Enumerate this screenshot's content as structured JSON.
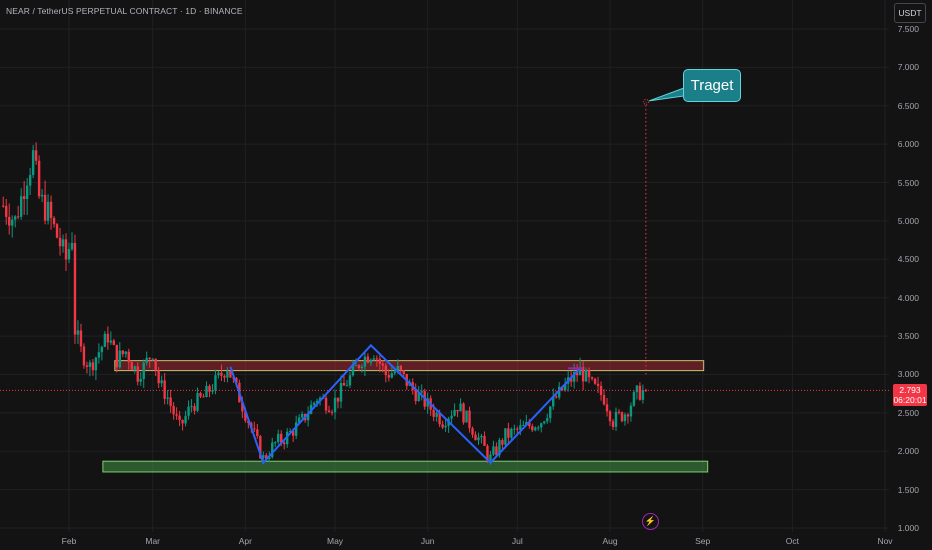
{
  "header": {
    "title": "NEAR / TetherUS PERPETUAL CONTRACT · 1D · BINANCE",
    "currency_button": "USDT"
  },
  "price_badge": {
    "price": "2.793",
    "countdown": "06:20:01"
  },
  "annotation": {
    "target_label": "Traget"
  },
  "colors": {
    "background": "#131313",
    "up_candle": "#089981",
    "down_candle": "#f23645",
    "pattern_line": "#2962ff",
    "resistance_zone": "#f23645",
    "support_zone": "#4caf50",
    "target_label_bg": "#1b7f8a",
    "target_line": "#f23645",
    "alert_icon": "#9c27b0"
  },
  "icons": {
    "alert_icon": "lightning-bolt-icon"
  },
  "chart_data": {
    "type": "candlestick",
    "ylim": [
      1.0,
      7.5
    ],
    "y_ticks": [
      "7.500",
      "7.000",
      "6.500",
      "6.000",
      "5.500",
      "5.000",
      "4.500",
      "4.000",
      "3.500",
      "3.000",
      "2.500",
      "2.000",
      "1.500",
      "1.000"
    ],
    "x_ticks": [
      "Feb",
      "Mar",
      "Apr",
      "May",
      "Jun",
      "Jul",
      "Aug",
      "Sep",
      "Oct",
      "Nov"
    ],
    "grid": true,
    "last_price": 2.793,
    "close_series": [
      {
        "date": "2025-01-10",
        "close": 5.2
      },
      {
        "date": "2025-01-14",
        "close": 5.0
      },
      {
        "date": "2025-01-18",
        "close": 5.6
      },
      {
        "date": "2025-01-20",
        "close": 5.85
      },
      {
        "date": "2025-01-22",
        "close": 5.3
      },
      {
        "date": "2025-01-25",
        "close": 5.1
      },
      {
        "date": "2025-01-28",
        "close": 4.8
      },
      {
        "date": "2025-01-31",
        "close": 4.5
      },
      {
        "date": "2025-02-02",
        "close": 4.8
      },
      {
        "date": "2025-02-03",
        "close": 3.6
      },
      {
        "date": "2025-02-05",
        "close": 3.3
      },
      {
        "date": "2025-02-08",
        "close": 3.1
      },
      {
        "date": "2025-02-11",
        "close": 3.3
      },
      {
        "date": "2025-02-14",
        "close": 3.5
      },
      {
        "date": "2025-02-17",
        "close": 3.2
      },
      {
        "date": "2025-02-20",
        "close": 3.3
      },
      {
        "date": "2025-02-24",
        "close": 3.0
      },
      {
        "date": "2025-02-26",
        "close": 3.1
      },
      {
        "date": "2025-03-01",
        "close": 3.3
      },
      {
        "date": "2025-03-03",
        "close": 2.9
      },
      {
        "date": "2025-03-06",
        "close": 2.7
      },
      {
        "date": "2025-03-10",
        "close": 2.3
      },
      {
        "date": "2025-03-14",
        "close": 2.6
      },
      {
        "date": "2025-03-18",
        "close": 2.7
      },
      {
        "date": "2025-03-22",
        "close": 2.9
      },
      {
        "date": "2025-03-26",
        "close": 3.1
      },
      {
        "date": "2025-03-30",
        "close": 2.7
      },
      {
        "date": "2025-04-03",
        "close": 2.3
      },
      {
        "date": "2025-04-07",
        "close": 1.9
      },
      {
        "date": "2025-04-11",
        "close": 2.1
      },
      {
        "date": "2025-04-15",
        "close": 2.2
      },
      {
        "date": "2025-04-20",
        "close": 2.4
      },
      {
        "date": "2025-04-25",
        "close": 2.7
      },
      {
        "date": "2025-04-30",
        "close": 2.6
      },
      {
        "date": "2025-05-05",
        "close": 2.9
      },
      {
        "date": "2025-05-10",
        "close": 3.2
      },
      {
        "date": "2025-05-14",
        "close": 3.3
      },
      {
        "date": "2025-05-18",
        "close": 3.0
      },
      {
        "date": "2025-05-22",
        "close": 3.05
      },
      {
        "date": "2025-05-27",
        "close": 2.8
      },
      {
        "date": "2025-06-01",
        "close": 2.6
      },
      {
        "date": "2025-06-06",
        "close": 2.4
      },
      {
        "date": "2025-06-11",
        "close": 2.6
      },
      {
        "date": "2025-06-16",
        "close": 2.3
      },
      {
        "date": "2025-06-22",
        "close": 1.9
      },
      {
        "date": "2025-06-27",
        "close": 2.2
      },
      {
        "date": "2025-07-03",
        "close": 2.3
      },
      {
        "date": "2025-07-09",
        "close": 2.4
      },
      {
        "date": "2025-07-14",
        "close": 2.7
      },
      {
        "date": "2025-07-18",
        "close": 2.9
      },
      {
        "date": "2025-07-22",
        "close": 3.05
      },
      {
        "date": "2025-07-26",
        "close": 2.85
      },
      {
        "date": "2025-07-30",
        "close": 2.7
      },
      {
        "date": "2025-08-02",
        "close": 2.4
      },
      {
        "date": "2025-08-06",
        "close": 2.5
      },
      {
        "date": "2025-08-10",
        "close": 2.75
      },
      {
        "date": "2025-08-13",
        "close": 2.793
      }
    ],
    "annotations": {
      "resistance_zone": {
        "y_low": 3.05,
        "y_high": 3.18,
        "x_start": "2025-02-17",
        "x_end": "2025-08-31"
      },
      "support_zone": {
        "y_low": 1.73,
        "y_high": 1.87,
        "x_start": "2025-02-13",
        "x_end": "2025-08-31"
      },
      "pattern_line": [
        {
          "date": "2025-03-27",
          "price": 3.1
        },
        {
          "date": "2025-04-07",
          "price": 1.85
        },
        {
          "date": "2025-05-13",
          "price": 3.38
        },
        {
          "date": "2025-06-22",
          "price": 1.85
        },
        {
          "date": "2025-07-22",
          "price": 3.08
        }
      ],
      "target": {
        "date": "2025-08-13",
        "price": 6.55,
        "from_price": 3.0
      }
    }
  }
}
